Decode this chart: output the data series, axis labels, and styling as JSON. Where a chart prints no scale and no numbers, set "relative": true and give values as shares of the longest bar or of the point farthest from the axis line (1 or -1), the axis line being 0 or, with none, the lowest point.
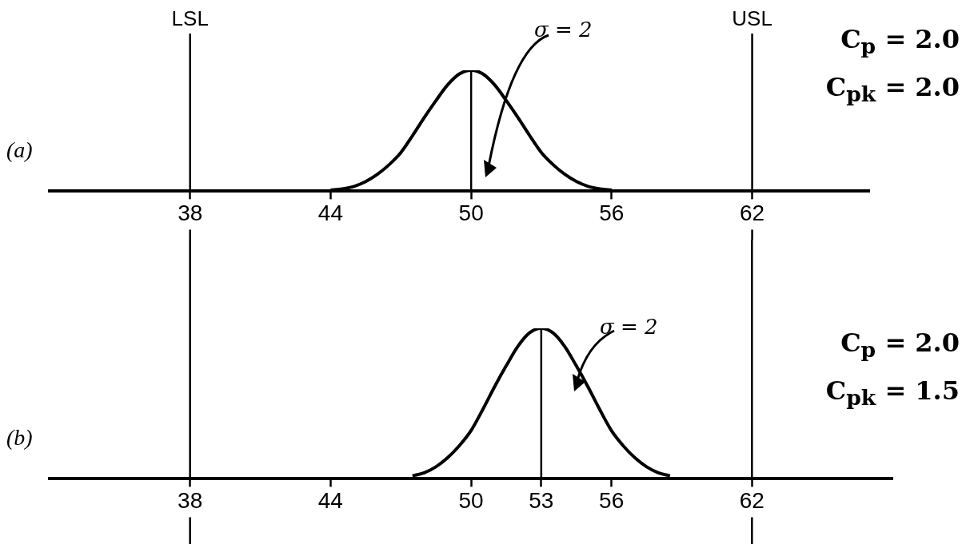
{
  "chart_data": [
    {
      "type": "line",
      "title": "(a)",
      "relative": true,
      "xlim": [
        32,
        67
      ],
      "xticks": [
        38,
        44,
        50,
        56,
        62
      ],
      "series": [
        {
          "color": "#000000",
          "x": [
            44,
            44.5,
            45,
            45.5,
            46,
            46.5,
            47,
            47.5,
            48,
            48.5,
            49,
            49.5,
            50,
            50.5,
            51,
            51.5,
            52,
            52.5,
            53,
            53.5,
            54,
            54.5,
            55,
            55.5,
            56
          ],
          "values": [
            0.01,
            0.02,
            0.04,
            0.08,
            0.14,
            0.22,
            0.32,
            0.46,
            0.61,
            0.75,
            0.88,
            0.97,
            1,
            0.97,
            0.88,
            0.75,
            0.61,
            0.46,
            0.32,
            0.22,
            0.14,
            0.08,
            0.04,
            0.02,
            0.01
          ]
        },
        {
          "color": "#000000",
          "x": [
            50,
            50
          ],
          "values": [
            0,
            1
          ]
        }
      ],
      "ref_lines": [
        {
          "axis": "x",
          "value": 38,
          "label": "LSL",
          "color": "#000000"
        },
        {
          "axis": "x",
          "value": 62,
          "label": "USL",
          "color": "#000000"
        }
      ],
      "annotations": [
        "σ = 2",
        "C$_{p}$ = 2.0",
        "C$_{pk}$ = 2.0"
      ]
    },
    {
      "type": "line",
      "title": "(b)",
      "relative": true,
      "xlim": [
        32,
        68
      ],
      "xticks": [
        38,
        44,
        50,
        53,
        56,
        62
      ],
      "series": [
        {
          "color": "#000000",
          "x": [
            47.5,
            48,
            48.5,
            49,
            49.5,
            50,
            50.5,
            51,
            51.5,
            52,
            52.5,
            53,
            53.5,
            54,
            54.5,
            55,
            55.5,
            56,
            56.5,
            57,
            57.5,
            58,
            58.5
          ],
          "values": [
            0.02,
            0.04,
            0.08,
            0.14,
            0.22,
            0.32,
            0.46,
            0.61,
            0.75,
            0.88,
            0.97,
            1,
            0.97,
            0.88,
            0.75,
            0.61,
            0.46,
            0.32,
            0.22,
            0.14,
            0.08,
            0.04,
            0.02
          ]
        },
        {
          "color": "#000000",
          "x": [
            53,
            53
          ],
          "values": [
            0,
            1
          ]
        }
      ],
      "ref_lines": [
        {
          "axis": "x",
          "value": 38,
          "label": null,
          "color": "#000000"
        },
        {
          "axis": "x",
          "value": 62,
          "label": null,
          "color": "#000000"
        }
      ],
      "annotations": [
        "σ = 2",
        "C$_{p}$ = 2.0",
        "C$_{pk}$ = 1.5"
      ]
    }
  ]
}
